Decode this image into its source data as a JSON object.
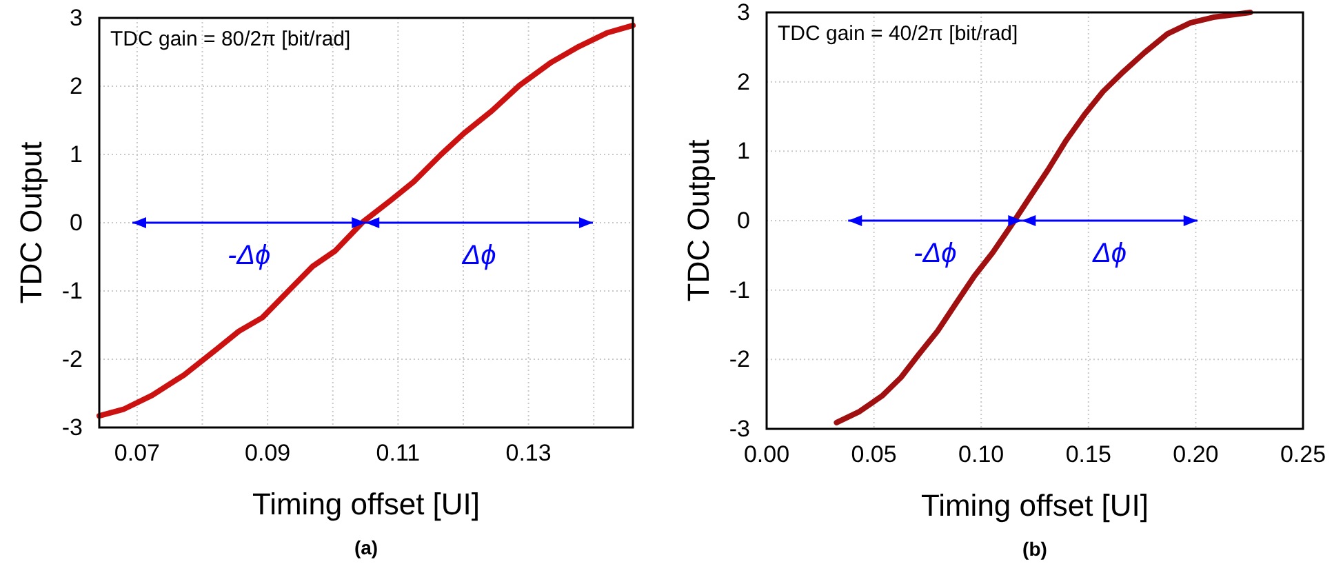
{
  "chart_data": [
    {
      "type": "line",
      "xlabel": "Timing offset [UI]",
      "ylabel": "TDC Output",
      "annotations": [
        "TDC gain = 80/2π [bit/rad]",
        "-Δϕ",
        "Δϕ",
        "(a)"
      ],
      "xlim": [
        0.0642,
        0.146
      ],
      "xticks": [
        0.07,
        {
          "value": 0.08,
          "label": null
        },
        0.09,
        {
          "value": 0.1,
          "label": null
        },
        0.11,
        {
          "value": 0.12,
          "label": null
        },
        0.13,
        {
          "value": 0.14,
          "label": null
        }
      ],
      "ylim": [
        -3,
        3
      ],
      "yticks": [
        -3,
        -2,
        -1,
        0,
        1,
        2,
        3
      ],
      "grid": true,
      "line_style": "solid",
      "series": [
        {
          "color": "#cc1111",
          "x": [
            0.0642,
            0.068,
            0.0723,
            0.0772,
            0.0821,
            0.0856,
            0.0892,
            0.0934,
            0.0969,
            0.1004,
            0.1046,
            0.1089,
            0.1124,
            0.1166,
            0.1201,
            0.1244,
            0.1286,
            0.1335,
            0.1377,
            0.142,
            0.146
          ],
          "values": [
            -2.83,
            -2.73,
            -2.53,
            -2.23,
            -1.86,
            -1.59,
            -1.39,
            -0.98,
            -0.64,
            -0.41,
            0.01,
            0.33,
            0.6,
            1.0,
            1.31,
            1.64,
            2.01,
            2.35,
            2.58,
            2.78,
            2.89
          ]
        }
      ]
    },
    {
      "type": "line",
      "xlabel": "Timing offset [UI]",
      "ylabel": "TDC Output",
      "annotations": [
        "TDC gain = 40/2π [bit/rad]",
        "-Δϕ",
        "Δϕ",
        "(b)"
      ],
      "xlim": [
        0,
        0.25
      ],
      "xticks": [
        {
          "value": 0,
          "label": "0.00"
        },
        0.05,
        {
          "value": 0.1,
          "label": "0.10"
        },
        0.15,
        {
          "value": 0.2,
          "label": "0.20"
        },
        0.25
      ],
      "ylim": [
        -3,
        3
      ],
      "yticks": [
        -3,
        -2,
        -1,
        0,
        1,
        2,
        3
      ],
      "grid": true,
      "line_style": "solid",
      "series": [
        {
          "color": "#a01010",
          "x": [
            0.0326,
            0.0433,
            0.054,
            0.0626,
            0.0711,
            0.0797,
            0.0883,
            0.0968,
            0.1054,
            0.114,
            0.1225,
            0.1311,
            0.1397,
            0.1482,
            0.1568,
            0.1654,
            0.1761,
            0.1868,
            0.1975,
            0.2082,
            0.2254
          ],
          "values": [
            -2.91,
            -2.75,
            -2.52,
            -2.26,
            -1.92,
            -1.59,
            -1.19,
            -0.8,
            -0.46,
            -0.07,
            0.33,
            0.73,
            1.16,
            1.53,
            1.86,
            2.12,
            2.42,
            2.69,
            2.85,
            2.93,
            3.0
          ]
        }
      ]
    }
  ]
}
